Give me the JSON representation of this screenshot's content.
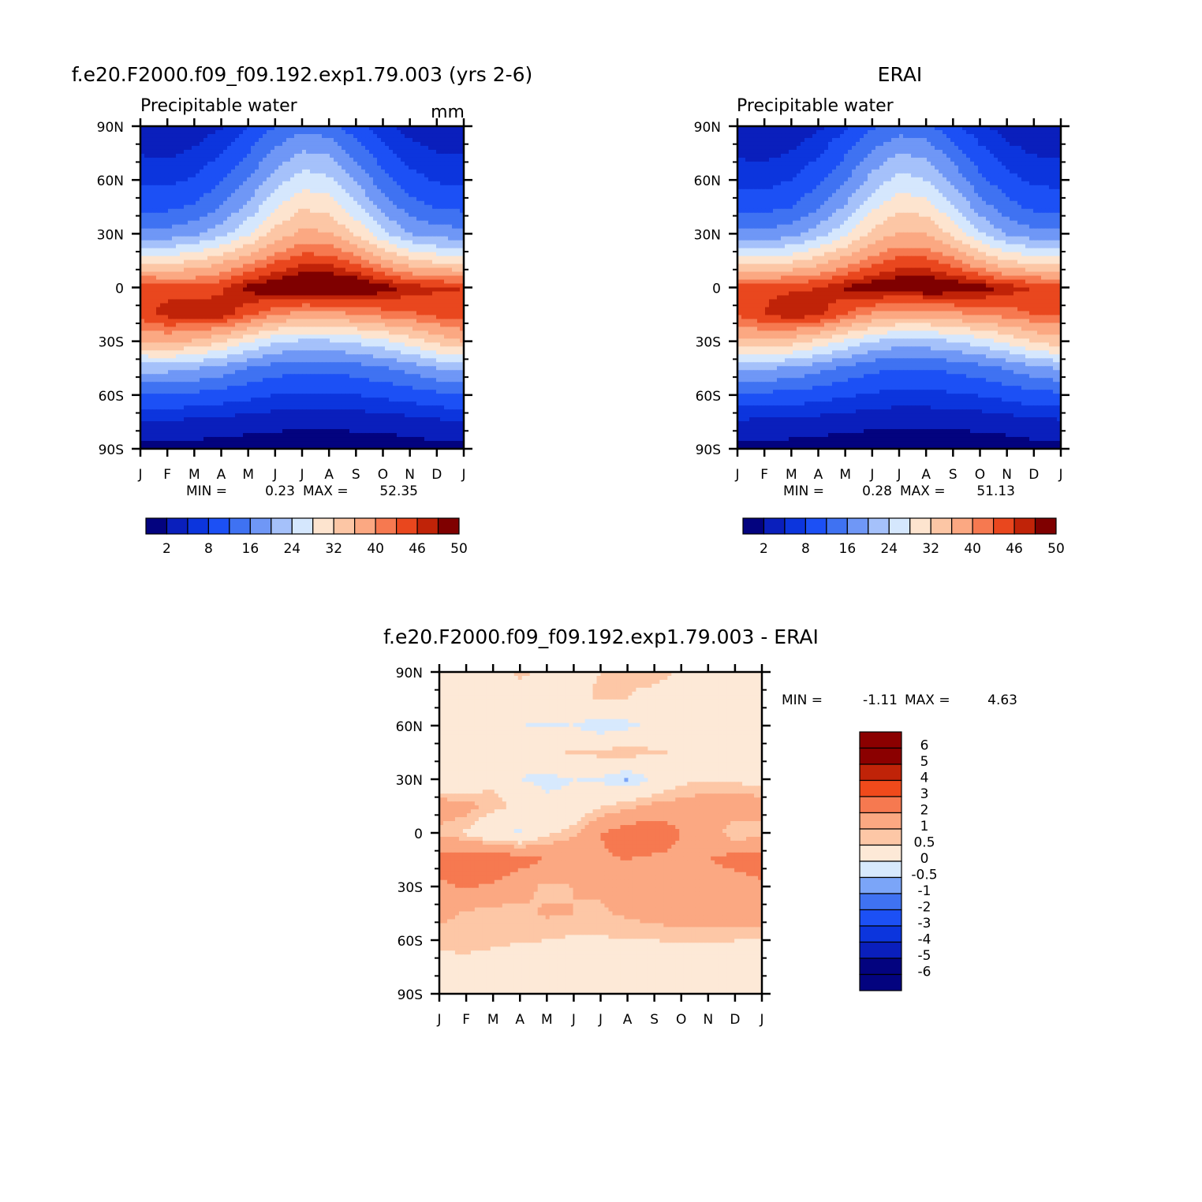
{
  "colors": {
    "scale15": [
      "#03037f",
      "#0a1fbc",
      "#0c35dd",
      "#1c50f5",
      "#3f72f2",
      "#6f97f6",
      "#a5c1fa",
      "#d5e7fd",
      "#fde4cf",
      "#fcc6a5",
      "#fba882",
      "#f67950",
      "#e9471e",
      "#c02308",
      "#7f0000"
    ],
    "diff14": [
      "#03037f",
      "#0a1fbc",
      "#0c35dd",
      "#1c50f5",
      "#3f72f2",
      "#7ba5f8",
      "#d7e9fd",
      "#fde9d7",
      "#fdc7a6",
      "#fba882",
      "#f67950",
      "#f04a1b",
      "#c02308",
      "#8b0000"
    ]
  },
  "panels": {
    "model": {
      "title": "f.e20.F2000.f09_f09.192.exp1.79.003 (yrs 2-6)",
      "left_label": "Precipitable water",
      "right_label": "mm",
      "stats": {
        "min_label": "MIN =",
        "min": "0.23",
        "max_label": "MAX =",
        "max": "52.35"
      }
    },
    "erai": {
      "title": "ERAI",
      "left_label": "Precipitable water",
      "stats": {
        "min_label": "MIN =",
        "min": "0.28",
        "max_label": "MAX =",
        "max": "51.13"
      }
    },
    "diff": {
      "title": "f.e20.F2000.f09_f09.192.exp1.79.003 - ERAI",
      "stats": {
        "min_label": "MIN =",
        "min": "-1.11",
        "max_label": "MAX =",
        "max": "4.63"
      }
    }
  },
  "axes": {
    "month_ticks": [
      "J",
      "F",
      "M",
      "A",
      "M",
      "J",
      "J",
      "A",
      "S",
      "O",
      "N",
      "D",
      "J"
    ],
    "lat_ticks": [
      "90N",
      "60N",
      "30N",
      "0",
      "30S",
      "60S",
      "90S"
    ]
  },
  "colorbars": {
    "pw_labels": [
      "2",
      "8",
      "16",
      "24",
      "32",
      "40",
      "46",
      "50"
    ],
    "diff_labels": [
      "6",
      "5",
      "4",
      "3",
      "2",
      "1",
      "0.5",
      "0",
      "-0.5",
      "-1",
      "-2",
      "-3",
      "-4",
      "-5",
      "-6"
    ]
  },
  "chart_data": [
    {
      "type": "heatmap",
      "title": "f.e20.F2000.f09_f09.192.exp1.79.003 (yrs 2-6)",
      "subtitle": "Precipitable water",
      "units": "mm",
      "x": [
        "J",
        "F",
        "M",
        "A",
        "M",
        "J",
        "J",
        "A",
        "S",
        "O",
        "N",
        "D",
        "J"
      ],
      "y": [
        90,
        75,
        60,
        45,
        30,
        15,
        0,
        -15,
        -30,
        -45,
        -60,
        -75,
        -90
      ],
      "xlabel": "",
      "ylabel": "",
      "min": 0.23,
      "max": 52.35,
      "levels": [
        2,
        5,
        8,
        12,
        16,
        20,
        24,
        28,
        32,
        36,
        40,
        43,
        46,
        48,
        50
      ],
      "values": [
        [
          3.0,
          2.8,
          3.2,
          4.6,
          7.8,
          12.0,
          14.5,
          13.5,
          9.5,
          5.8,
          3.8,
          3.0,
          3.0
        ],
        [
          4.8,
          4.5,
          5.5,
          7.8,
          12.0,
          17.0,
          20.5,
          19.5,
          14.5,
          9.5,
          6.2,
          5.0,
          4.8
        ],
        [
          7.2,
          7.0,
          8.5,
          11.5,
          16.0,
          22.0,
          26.0,
          24.8,
          19.5,
          13.5,
          9.5,
          7.6,
          7.2
        ],
        [
          11.0,
          11.0,
          12.5,
          16.0,
          21.0,
          27.5,
          31.5,
          30.5,
          25.0,
          18.5,
          14.0,
          11.5,
          11.0
        ],
        [
          17.5,
          17.5,
          19.0,
          22.5,
          27.5,
          33.5,
          37.0,
          36.5,
          31.5,
          25.0,
          20.0,
          18.0,
          17.5
        ],
        [
          30.5,
          30.5,
          32.0,
          35.0,
          38.5,
          42.5,
          45.0,
          45.0,
          42.0,
          37.0,
          33.0,
          31.0,
          30.5
        ],
        [
          46.0,
          45.0,
          44.5,
          45.5,
          49.0,
          50.5,
          51.5,
          52.0,
          51.5,
          49.5,
          47.5,
          46.5,
          46.0
        ],
        [
          45.0,
          47.0,
          47.5,
          47.5,
          44.0,
          40.5,
          38.5,
          38.5,
          40.0,
          41.5,
          42.5,
          44.0,
          45.0
        ],
        [
          36.0,
          37.0,
          35.5,
          32.5,
          28.5,
          25.0,
          23.5,
          23.5,
          25.0,
          27.0,
          30.0,
          33.5,
          36.0
        ],
        [
          21.5,
          21.5,
          20.5,
          18.5,
          16.0,
          14.0,
          13.0,
          13.0,
          14.0,
          15.5,
          17.5,
          20.0,
          21.5
        ],
        [
          11.5,
          11.5,
          11.0,
          10.0,
          9.0,
          8.0,
          7.5,
          7.5,
          8.0,
          8.7,
          9.7,
          11.0,
          11.5
        ],
        [
          4.6,
          4.5,
          4.2,
          3.8,
          3.3,
          2.9,
          2.7,
          2.7,
          2.9,
          3.1,
          3.6,
          4.3,
          4.6
        ],
        [
          1.2,
          1.1,
          0.9,
          0.7,
          0.5,
          0.4,
          0.3,
          0.3,
          0.4,
          0.5,
          0.7,
          1.0,
          1.2
        ]
      ]
    },
    {
      "type": "heatmap",
      "title": "ERAI",
      "subtitle": "Precipitable water",
      "x": [
        "J",
        "F",
        "M",
        "A",
        "M",
        "J",
        "J",
        "A",
        "S",
        "O",
        "N",
        "D",
        "J"
      ],
      "y": [
        90,
        75,
        60,
        45,
        30,
        15,
        0,
        -15,
        -30,
        -45,
        -60,
        -75,
        -90
      ],
      "xlabel": "",
      "ylabel": "",
      "min": 0.28,
      "max": 51.13,
      "levels": [
        2,
        5,
        8,
        12,
        16,
        20,
        24,
        28,
        32,
        36,
        40,
        43,
        46,
        48,
        50
      ],
      "values": [
        [
          2.8,
          2.0,
          2.8,
          4.3,
          7.4,
          11.5,
          14.0,
          13.0,
          9.0,
          5.5,
          3.6,
          2.8,
          2.8
        ],
        [
          4.5,
          4.2,
          5.2,
          7.5,
          11.5,
          16.5,
          20.0,
          19.0,
          14.0,
          9.2,
          6.0,
          4.8,
          4.5
        ],
        [
          6.8,
          6.6,
          8.0,
          11.0,
          15.5,
          21.5,
          25.5,
          24.0,
          19.0,
          13.0,
          9.2,
          7.3,
          6.8
        ],
        [
          10.5,
          10.5,
          12.0,
          15.5,
          20.5,
          27.0,
          31.0,
          30.0,
          24.5,
          18.0,
          13.5,
          11.0,
          10.5
        ],
        [
          17.0,
          17.0,
          18.5,
          22.0,
          27.0,
          33.0,
          36.5,
          36.0,
          31.0,
          24.5,
          19.5,
          17.5,
          17.0
        ],
        [
          29.5,
          29.5,
          31.0,
          34.0,
          37.5,
          41.5,
          44.0,
          44.0,
          41.0,
          36.0,
          32.0,
          30.0,
          29.5
        ],
        [
          45.5,
          45.5,
          45.5,
          46.0,
          48.5,
          50.0,
          50.5,
          51.0,
          50.5,
          49.5,
          47.5,
          46.0,
          45.5
        ],
        [
          43.5,
          46.0,
          48.0,
          47.0,
          43.0,
          39.5,
          37.5,
          37.5,
          39.0,
          40.5,
          41.5,
          43.0,
          43.5
        ],
        [
          34.5,
          35.5,
          34.0,
          31.0,
          27.5,
          24.0,
          22.5,
          22.5,
          24.0,
          26.0,
          29.0,
          32.5,
          34.5
        ],
        [
          20.5,
          20.5,
          19.5,
          17.5,
          15.0,
          13.0,
          12.0,
          12.0,
          13.0,
          14.5,
          16.5,
          19.0,
          20.5
        ],
        [
          11.0,
          11.0,
          10.5,
          9.5,
          8.5,
          7.5,
          7.0,
          7.0,
          7.5,
          8.2,
          9.2,
          10.5,
          11.0
        ],
        [
          4.4,
          4.3,
          4.0,
          3.6,
          3.1,
          2.7,
          2.5,
          2.5,
          2.7,
          2.9,
          3.4,
          4.1,
          4.4
        ],
        [
          1.1,
          1.0,
          0.8,
          0.6,
          0.4,
          0.35,
          0.3,
          0.3,
          0.35,
          0.4,
          0.6,
          0.9,
          1.1
        ]
      ]
    },
    {
      "type": "heatmap",
      "title": "f.e20.F2000.f09_f09.192.exp1.79.003 - ERAI",
      "x": [
        "J",
        "F",
        "M",
        "A",
        "M",
        "J",
        "J",
        "A",
        "S",
        "O",
        "N",
        "D",
        "J"
      ],
      "y": [
        90,
        75,
        60,
        45,
        30,
        15,
        0,
        -15,
        -30,
        -45,
        -60,
        -75,
        -90
      ],
      "xlabel": "",
      "ylabel": "",
      "min": -1.11,
      "max": 4.63,
      "levels": [
        -6,
        -5,
        -4,
        -3,
        -2,
        -1,
        -0.5,
        0,
        0.5,
        1,
        2,
        3,
        4,
        5,
        6
      ],
      "values": [
        [
          0.3,
          0.3,
          0.3,
          0.6,
          0.4,
          0.4,
          0.5,
          0.6,
          0.7,
          0.4,
          0.2,
          -0.3,
          0.3
        ],
        [
          0.2,
          -0.3,
          -0.2,
          0.2,
          0.2,
          0.3,
          0.6,
          0.5,
          0.3,
          0.2,
          0.2,
          0.2,
          0.2
        ],
        [
          0.2,
          -0.3,
          -0.3,
          -0.5,
          -0.6,
          -0.5,
          -1.0,
          -0.7,
          -0.3,
          -0.3,
          -0.3,
          0.2,
          0.2
        ],
        [
          0.2,
          -0.3,
          -0.4,
          -0.3,
          0.3,
          0.6,
          0.7,
          0.8,
          0.6,
          0.4,
          0.3,
          0.3,
          0.2
        ],
        [
          -0.4,
          -0.3,
          0.3,
          -0.5,
          -0.7,
          -0.5,
          -0.6,
          -1.1,
          -0.4,
          0.3,
          0.4,
          0.3,
          0.2
        ],
        [
          1.5,
          1.3,
          0.8,
          0.3,
          -0.3,
          -0.3,
          0.4,
          0.8,
          1.2,
          1.3,
          1.5,
          1.7,
          1.4
        ],
        [
          0.8,
          0.4,
          -0.5,
          -0.6,
          0.3,
          0.8,
          2.0,
          2.5,
          2.8,
          2.0,
          1.6,
          0.5,
          0.7
        ],
        [
          2.4,
          2.8,
          3.1,
          2.4,
          2.0,
          1.9,
          1.9,
          2.0,
          1.8,
          1.7,
          2.0,
          2.4,
          2.6
        ],
        [
          1.8,
          2.1,
          1.8,
          1.3,
          0.8,
          1.0,
          1.1,
          1.4,
          1.5,
          1.3,
          1.1,
          1.4,
          1.8
        ],
        [
          1.2,
          0.9,
          0.7,
          0.8,
          1.1,
          1.0,
          0.9,
          1.1,
          1.3,
          1.5,
          1.4,
          1.5,
          1.6
        ],
        [
          0.7,
          0.8,
          0.8,
          0.6,
          0.5,
          0.4,
          0.4,
          0.5,
          0.5,
          0.6,
          0.6,
          0.5,
          0.5
        ],
        [
          0.2,
          0.2,
          -0.2,
          -0.3,
          -0.3,
          -0.3,
          -0.3,
          0.3,
          -0.3,
          -0.3,
          -0.3,
          0.2,
          0.2
        ],
        [
          -0.2,
          -0.2,
          -0.2,
          -0.2,
          -0.3,
          -0.3,
          -0.3,
          -0.3,
          -0.3,
          -0.3,
          -0.3,
          -0.2,
          -0.2
        ]
      ]
    }
  ]
}
